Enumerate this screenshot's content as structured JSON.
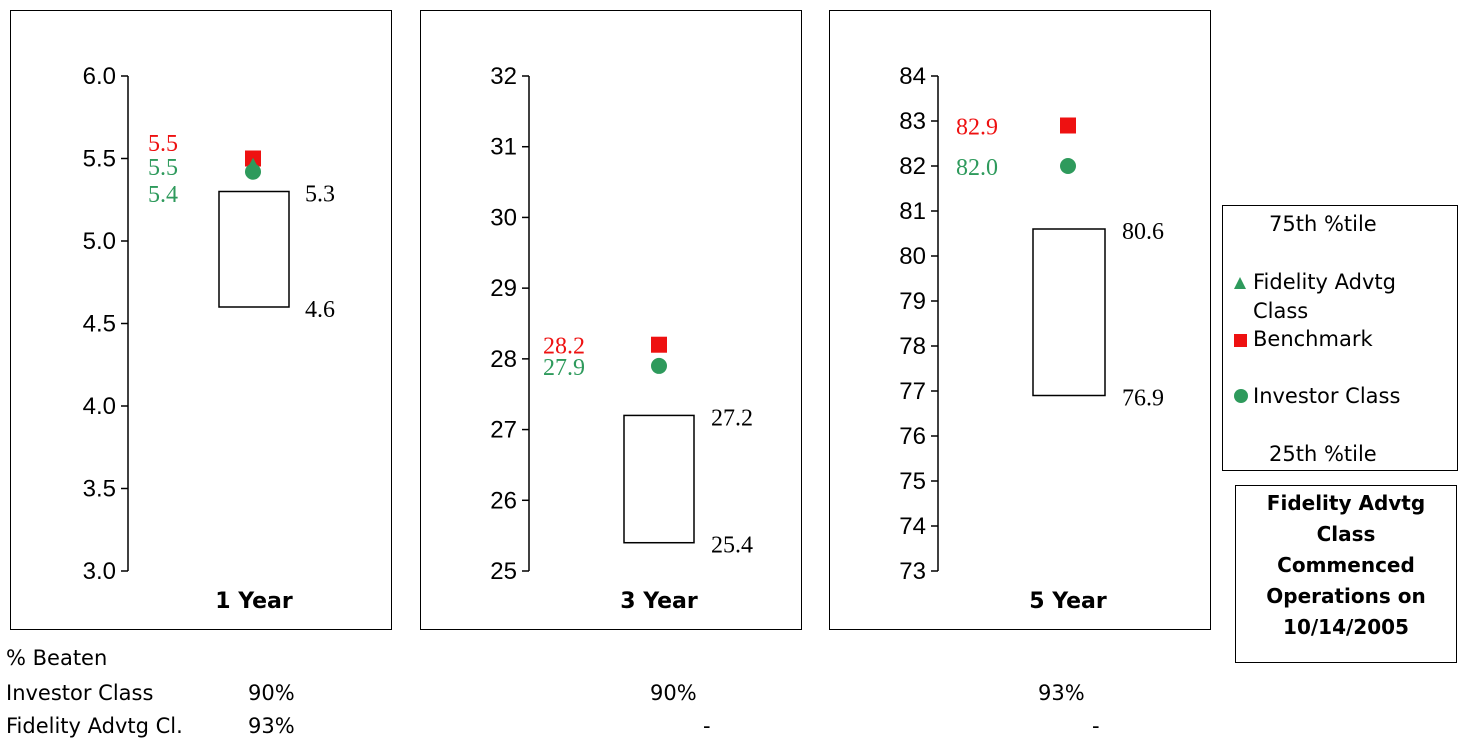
{
  "chart_data": [
    {
      "type": "box",
      "xlabel": "1 Year",
      "ylim": [
        3.0,
        6.0
      ],
      "yticks": [
        "3.0",
        "3.5",
        "4.0",
        "4.5",
        "5.0",
        "5.5",
        "6.0"
      ],
      "percentile_75": 5.3,
      "percentile_25": 4.6,
      "percentile_75_label": "5.3",
      "percentile_25_label": "4.6",
      "benchmark": 5.5,
      "fidelity_advtg": 5.45,
      "investor": 5.42,
      "benchmark_label": "5.5",
      "fidelity_advtg_label": "5.5",
      "investor_label": "5.4"
    },
    {
      "type": "box",
      "xlabel": "3 Year",
      "ylim": [
        25,
        32
      ],
      "yticks": [
        "25",
        "26",
        "27",
        "28",
        "29",
        "30",
        "31",
        "32"
      ],
      "percentile_75": 27.2,
      "percentile_25": 25.4,
      "percentile_75_label": "27.2",
      "percentile_25_label": "25.4",
      "benchmark": 28.2,
      "investor": 27.9,
      "benchmark_label": "28.2",
      "investor_label": "27.9"
    },
    {
      "type": "box",
      "xlabel": "5 Year",
      "ylim": [
        73,
        84
      ],
      "yticks": [
        "73",
        "74",
        "75",
        "76",
        "77",
        "78",
        "79",
        "80",
        "81",
        "82",
        "83",
        "84"
      ],
      "percentile_75": 80.6,
      "percentile_25": 76.9,
      "percentile_75_label": "80.6",
      "percentile_25_label": "76.9",
      "benchmark": 82.9,
      "investor": 82.0,
      "benchmark_label": "82.9",
      "investor_label": "82.0"
    }
  ],
  "colors": {
    "benchmark": "#ee1111",
    "investor": "#2e9a5c",
    "fidelity": "#2e9a5c"
  },
  "legend": {
    "p75": "75th %tile",
    "fidelity_line1": "Fidelity Advtg",
    "fidelity_line2": "Class",
    "benchmark": "Benchmark",
    "investor": "Investor Class",
    "p25": "25th %tile"
  },
  "note": {
    "line1": "Fidelity Advtg",
    "line2": "Class",
    "line3": "Commenced",
    "line4": "Operations on",
    "line5": "10/14/2005"
  },
  "beaten": {
    "heading": "% Beaten",
    "investor_label": "Investor Class",
    "fidelity_label": "Fidelity Advtg Cl.",
    "investor": [
      "90%",
      "90%",
      "93%"
    ],
    "fidelity": [
      "93%",
      "-",
      "-"
    ]
  }
}
